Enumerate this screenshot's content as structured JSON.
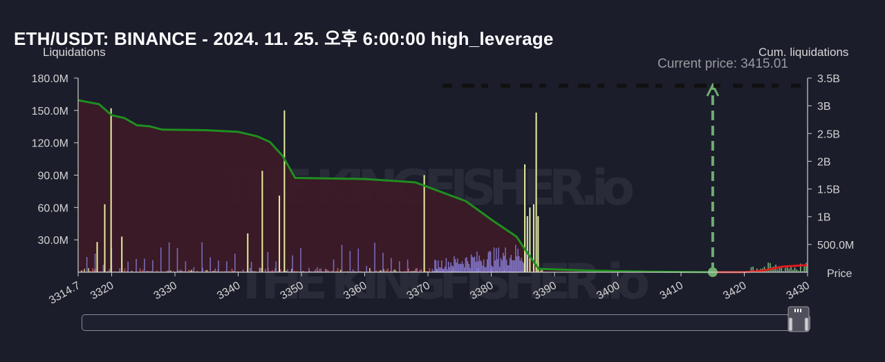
{
  "title": "ETH/USDT: BINANCE - 2024. 11. 25. 오후 6:00:00 high_leverage",
  "watermark": "THE KINGFISHER.io",
  "chart_data": {
    "type": "bar",
    "left_axis_label": "Liquidations",
    "right_axis_label": "Cum. liquidations",
    "x_axis_label": "Price",
    "x_range": [
      3314.7,
      3430
    ],
    "x_ticks": [
      "3314.7",
      "3320",
      "3330",
      "3340",
      "3350",
      "3360",
      "3370",
      "3380",
      "3390",
      "3400",
      "3410",
      "3420",
      "3430"
    ],
    "y_left_range": [
      0,
      180000000
    ],
    "y_left_ticks": [
      "30.0M",
      "60.0M",
      "90.0M",
      "120.0M",
      "150.0M",
      "180.0M"
    ],
    "y_right_range": [
      0,
      3500000000
    ],
    "y_right_ticks": [
      "500.0M",
      "1B",
      "1.5B",
      "2B",
      "2.5B",
      "3B",
      "3.5B"
    ],
    "current_price_label": "Current price: 3415.01",
    "current_price": 3415.01,
    "colors": {
      "short_liq_bars": "#8a7fdc",
      "long_liq_bars": "#e8f0a0",
      "small_bars": "#d96060",
      "cum_line_below": "#1f8f1f",
      "cum_line_above": "#e01b1b",
      "area_fill": "#3b1a26",
      "current_price_line": "#6fae6f"
    },
    "tall_bars": [
      {
        "price": 3319.8,
        "value": 152000000
      },
      {
        "price": 3318.8,
        "value": 63000000
      },
      {
        "price": 3317.6,
        "value": 28000000
      },
      {
        "price": 3321.5,
        "value": 33000000
      },
      {
        "price": 3343.7,
        "value": 94000000
      },
      {
        "price": 3347.2,
        "value": 150000000
      },
      {
        "price": 3346.4,
        "value": 71000000
      },
      {
        "price": 3341.4,
        "value": 36000000
      },
      {
        "price": 3369.3,
        "value": 90000000
      },
      {
        "price": 3385.2,
        "value": 100000000
      },
      {
        "price": 3386.0,
        "value": 60000000
      },
      {
        "price": 3387.0,
        "value": 148000000
      },
      {
        "price": 3386.6,
        "value": 63000000
      },
      {
        "price": 3387.3,
        "value": 52000000
      },
      {
        "price": 3385.6,
        "value": 52000000
      }
    ],
    "cum_liquidations_below": [
      {
        "price": 3314.7,
        "cum": 3100000000
      },
      {
        "price": 3318,
        "cum": 3030000000
      },
      {
        "price": 3320,
        "cum": 2830000000
      },
      {
        "price": 3322,
        "cum": 2780000000
      },
      {
        "price": 3324,
        "cum": 2650000000
      },
      {
        "price": 3326,
        "cum": 2630000000
      },
      {
        "price": 3328,
        "cum": 2570000000
      },
      {
        "price": 3335,
        "cum": 2560000000
      },
      {
        "price": 3340,
        "cum": 2530000000
      },
      {
        "price": 3343,
        "cum": 2450000000
      },
      {
        "price": 3345,
        "cum": 2350000000
      },
      {
        "price": 3347,
        "cum": 2100000000
      },
      {
        "price": 3349,
        "cum": 1700000000
      },
      {
        "price": 3360,
        "cum": 1680000000
      },
      {
        "price": 3368,
        "cum": 1620000000
      },
      {
        "price": 3372,
        "cum": 1450000000
      },
      {
        "price": 3376,
        "cum": 1280000000
      },
      {
        "price": 3380,
        "cum": 950000000
      },
      {
        "price": 3384,
        "cum": 640000000
      },
      {
        "price": 3386,
        "cum": 300000000
      },
      {
        "price": 3387.5,
        "cum": 60000000
      },
      {
        "price": 3395,
        "cum": 30000000
      },
      {
        "price": 3405,
        "cum": 10000000
      },
      {
        "price": 3415.01,
        "cum": 0
      }
    ],
    "cum_liquidations_above": [
      {
        "price": 3415.01,
        "cum": 0
      },
      {
        "price": 3420,
        "cum": 0
      },
      {
        "price": 3423,
        "cum": 30000000
      },
      {
        "price": 3426,
        "cum": 100000000
      },
      {
        "price": 3430,
        "cum": 130000000
      }
    ]
  }
}
